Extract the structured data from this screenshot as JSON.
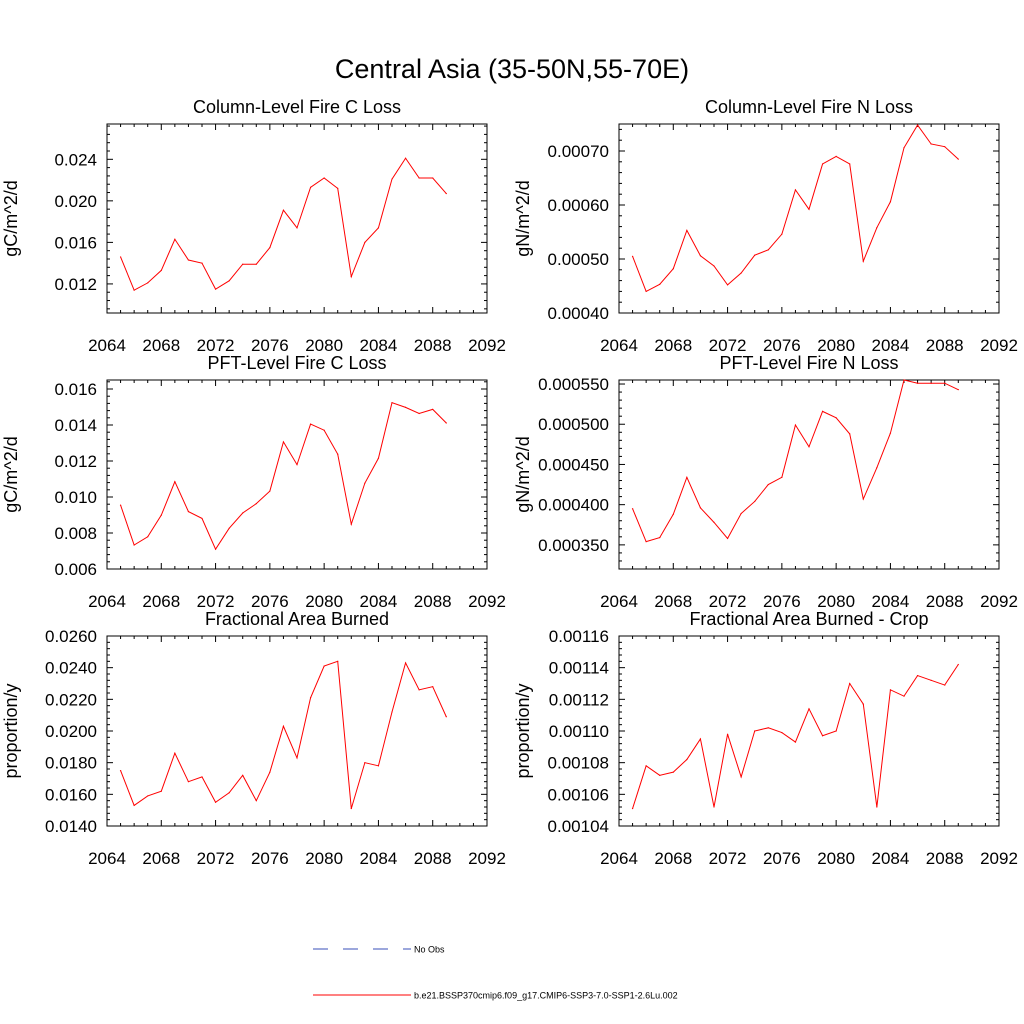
{
  "figure": {
    "title": "Central Asia (35-50N,55-70E)"
  },
  "legend": {
    "items": [
      {
        "label": "No Obs",
        "color": "#3a4fb8",
        "style": "dashed"
      },
      {
        "label": "b.e21.BSSP370cmip6.f09_g17.CMIP6-SSP3-7.0-SSP1-2.6Lu.002",
        "color": "#ff0000",
        "style": "solid"
      }
    ]
  },
  "chart_data": [
    {
      "type": "line",
      "title": "Column-Level Fire C Loss",
      "ylabel": "gC/m^2/d",
      "xlim": [
        2064,
        2092
      ],
      "ylim": [
        0.0092,
        0.0274
      ],
      "xticks": [
        "2064",
        "2068",
        "2072",
        "2076",
        "2080",
        "2084",
        "2088",
        "2092"
      ],
      "yticks": [
        "0.012",
        "0.016",
        "0.020",
        "0.024"
      ],
      "x": [
        2065,
        2066,
        2067,
        2068,
        2069,
        2070,
        2071,
        2072,
        2073,
        2074,
        2075,
        2076,
        2077,
        2078,
        2079,
        2080,
        2081,
        2082,
        2083,
        2084,
        2085,
        2086,
        2087,
        2088,
        2089
      ],
      "series": [
        {
          "color": "#ff0000",
          "values": [
            0.0146,
            0.0114,
            0.0121,
            0.0133,
            0.0163,
            0.0143,
            0.014,
            0.0115,
            0.0123,
            0.0139,
            0.0139,
            0.0155,
            0.0191,
            0.0174,
            0.0213,
            0.0222,
            0.0212,
            0.0127,
            0.016,
            0.0174,
            0.0221,
            0.0241,
            0.0222,
            0.0222,
            0.0207
          ]
        }
      ]
    },
    {
      "type": "line",
      "title": "Column-Level Fire N Loss",
      "ylabel": "gN/m^2/d",
      "xlim": [
        2064,
        2092
      ],
      "ylim": [
        0.0004,
        0.00075
      ],
      "xticks": [
        "2064",
        "2068",
        "2072",
        "2076",
        "2080",
        "2084",
        "2088",
        "2092"
      ],
      "yticks": [
        "0.00040",
        "0.00050",
        "0.00060",
        "0.00070"
      ],
      "x": [
        2065,
        2066,
        2067,
        2068,
        2069,
        2070,
        2071,
        2072,
        2073,
        2074,
        2075,
        2076,
        2077,
        2078,
        2079,
        2080,
        2081,
        2082,
        2083,
        2084,
        2085,
        2086,
        2087,
        2088,
        2089
      ],
      "series": [
        {
          "color": "#ff0000",
          "values": [
            0.000505,
            0.00044,
            0.000453,
            0.000482,
            0.000553,
            0.000506,
            0.000487,
            0.000452,
            0.000474,
            0.000507,
            0.000517,
            0.000546,
            0.000628,
            0.000592,
            0.000676,
            0.00069,
            0.000676,
            0.000496,
            0.000558,
            0.000606,
            0.000706,
            0.000748,
            0.000713,
            0.000708,
            0.000685
          ]
        }
      ]
    },
    {
      "type": "line",
      "title": "PFT-Level Fire C Loss",
      "ylabel": "gC/m^2/d",
      "xlim": [
        2064,
        2092
      ],
      "ylim": [
        0.006,
        0.0165
      ],
      "xticks": [
        "2064",
        "2068",
        "2072",
        "2076",
        "2080",
        "2084",
        "2088",
        "2092"
      ],
      "yticks": [
        "0.006",
        "0.008",
        "0.010",
        "0.012",
        "0.014",
        "0.016"
      ],
      "x": [
        2065,
        2066,
        2067,
        2068,
        2069,
        2070,
        2071,
        2072,
        2073,
        2074,
        2075,
        2076,
        2077,
        2078,
        2079,
        2080,
        2081,
        2082,
        2083,
        2084,
        2085,
        2086,
        2087,
        2088,
        2089
      ],
      "series": [
        {
          "color": "#ff0000",
          "values": [
            0.00955,
            0.00733,
            0.00779,
            0.00899,
            0.01085,
            0.00919,
            0.00881,
            0.0071,
            0.00826,
            0.00911,
            0.00963,
            0.01033,
            0.01306,
            0.0118,
            0.01405,
            0.01371,
            0.01238,
            0.00849,
            0.01077,
            0.01215,
            0.01524,
            0.01498,
            0.01464,
            0.01487,
            0.01411
          ]
        }
      ]
    },
    {
      "type": "line",
      "title": "PFT-Level Fire N Loss",
      "ylabel": "gN/m^2/d",
      "xlim": [
        2064,
        2092
      ],
      "ylim": [
        0.00032,
        0.000555
      ],
      "xticks": [
        "2064",
        "2068",
        "2072",
        "2076",
        "2080",
        "2084",
        "2088",
        "2092"
      ],
      "yticks": [
        "0.000350",
        "0.000400",
        "0.000450",
        "0.000500",
        "0.000550"
      ],
      "x": [
        2065,
        2066,
        2067,
        2068,
        2069,
        2070,
        2071,
        2072,
        2073,
        2074,
        2075,
        2076,
        2077,
        2078,
        2079,
        2080,
        2081,
        2082,
        2083,
        2084,
        2085,
        2086,
        2087,
        2088,
        2089
      ],
      "series": [
        {
          "color": "#ff0000",
          "values": [
            0.000395,
            0.000354,
            0.000359,
            0.000388,
            0.000434,
            0.000396,
            0.000378,
            0.000358,
            0.000389,
            0.000404,
            0.000425,
            0.000434,
            0.000499,
            0.000472,
            0.000516,
            0.000508,
            0.000488,
            0.000407,
            0.000446,
            0.000489,
            0.000555,
            0.000551,
            0.000551,
            0.000551,
            0.000543
          ]
        }
      ]
    },
    {
      "type": "line",
      "title": "Fractional Area Burned",
      "ylabel": "proportion/y",
      "xlim": [
        2064,
        2092
      ],
      "ylim": [
        0.014,
        0.026
      ],
      "xticks": [
        "2064",
        "2068",
        "2072",
        "2076",
        "2080",
        "2084",
        "2088",
        "2092"
      ],
      "yticks": [
        "0.0140",
        "0.0160",
        "0.0180",
        "0.0200",
        "0.0220",
        "0.0240",
        "0.0260"
      ],
      "x": [
        2065,
        2066,
        2067,
        2068,
        2069,
        2070,
        2071,
        2072,
        2073,
        2074,
        2075,
        2076,
        2077,
        2078,
        2079,
        2080,
        2081,
        2082,
        2083,
        2084,
        2085,
        2086,
        2087,
        2088,
        2089
      ],
      "series": [
        {
          "color": "#ff0000",
          "values": [
            0.0175,
            0.0153,
            0.0159,
            0.0162,
            0.0186,
            0.0168,
            0.0171,
            0.0155,
            0.0161,
            0.0172,
            0.0156,
            0.0174,
            0.0203,
            0.0183,
            0.0221,
            0.0241,
            0.0244,
            0.0151,
            0.018,
            0.0178,
            0.0212,
            0.0243,
            0.0226,
            0.0228,
            0.0209
          ]
        }
      ]
    },
    {
      "type": "line",
      "title": "Fractional Area Burned - Crop",
      "ylabel": "proportion/y",
      "xlim": [
        2064,
        2092
      ],
      "ylim": [
        0.00104,
        0.00116
      ],
      "xticks": [
        "2064",
        "2068",
        "2072",
        "2076",
        "2080",
        "2084",
        "2088",
        "2092"
      ],
      "yticks": [
        "0.00104",
        "0.00106",
        "0.00108",
        "0.00110",
        "0.00112",
        "0.00114",
        "0.00116"
      ],
      "x": [
        2065,
        2066,
        2067,
        2068,
        2069,
        2070,
        2071,
        2072,
        2073,
        2074,
        2075,
        2076,
        2077,
        2078,
        2079,
        2080,
        2081,
        2082,
        2083,
        2084,
        2085,
        2086,
        2087,
        2088,
        2089
      ],
      "series": [
        {
          "color": "#ff0000",
          "values": [
            0.001051,
            0.001078,
            0.001072,
            0.001074,
            0.001082,
            0.001095,
            0.001052,
            0.001098,
            0.001071,
            0.0011,
            0.001102,
            0.001099,
            0.001093,
            0.001114,
            0.001097,
            0.0011,
            0.00113,
            0.001117,
            0.001052,
            0.001126,
            0.001122,
            0.001135,
            0.001132,
            0.001129,
            0.001142
          ]
        }
      ]
    }
  ]
}
